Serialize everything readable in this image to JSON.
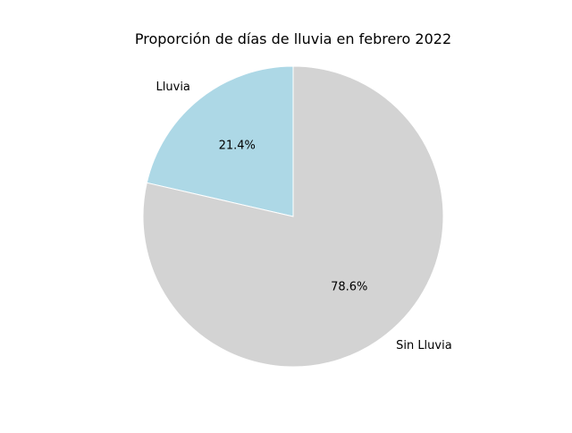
{
  "chart_data": {
    "type": "pie",
    "title": "Proporción de días de lluvia en febrero 2022",
    "slices": [
      {
        "label": "Lluvia",
        "value": 21.4,
        "pct_label": "21.4%",
        "color": "#add8e6"
      },
      {
        "label": "Sin Lluvia",
        "value": 78.6,
        "pct_label": "78.6%",
        "color": "#d3d3d3"
      }
    ],
    "start_angle_deg": 90,
    "direction": "counterclockwise",
    "edge_color": "#ffffff"
  }
}
